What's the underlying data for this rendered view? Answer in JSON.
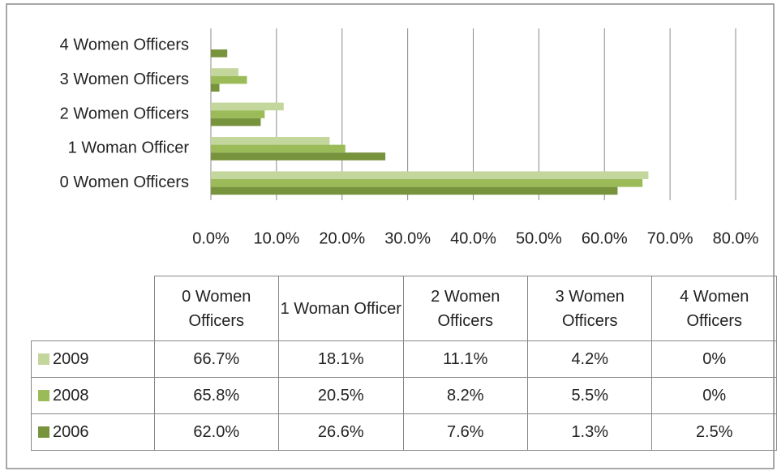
{
  "chart_data": {
    "type": "hbar",
    "categories": [
      "0 Women Officers",
      "1 Woman Officer",
      "2 Women Officers",
      "3 Women Officers",
      "4 Women Officers"
    ],
    "series": [
      {
        "name": "2009",
        "color": "#c3d69b",
        "values": [
          66.7,
          18.1,
          11.1,
          4.2,
          0
        ],
        "value_labels": [
          "66.7%",
          "18.1%",
          "11.1%",
          "4.2%",
          "0%"
        ]
      },
      {
        "name": "2008",
        "color": "#9bbb59",
        "values": [
          65.8,
          20.5,
          8.2,
          5.5,
          0
        ],
        "value_labels": [
          "65.8%",
          "20.5%",
          "8.2%",
          "5.5%",
          "0%"
        ]
      },
      {
        "name": "2006",
        "color": "#77933c",
        "values": [
          62.0,
          26.6,
          7.6,
          1.3,
          2.5
        ],
        "value_labels": [
          "62.0%",
          "26.6%",
          "7.6%",
          "1.3%",
          "2.5%"
        ]
      }
    ],
    "xlim": [
      0,
      80
    ],
    "xticks": [
      {
        "value": 0,
        "label": "0.0%"
      },
      {
        "value": 10,
        "label": "10.0%"
      },
      {
        "value": 20,
        "label": "20.0%"
      },
      {
        "value": 30,
        "label": "30.0%"
      },
      {
        "value": 40,
        "label": "40.0%"
      },
      {
        "value": 50,
        "label": "50.0%"
      },
      {
        "value": 60,
        "label": "60.0%"
      },
      {
        "value": 70,
        "label": "70.0%"
      },
      {
        "value": 80,
        "label": "80.0%"
      }
    ],
    "grid": true
  }
}
